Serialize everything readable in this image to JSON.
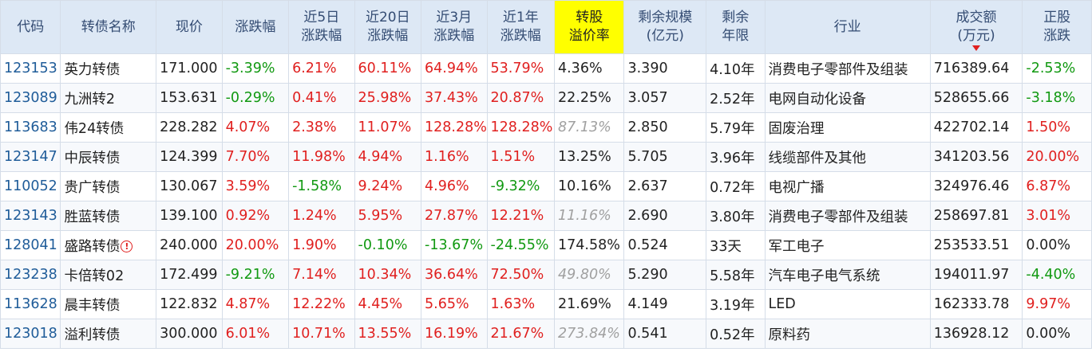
{
  "colors": {
    "up": "#e0201f",
    "down": "#119911",
    "highlight_header": "#ffff00",
    "code": "#1f5c99"
  },
  "headers": {
    "code": "代码",
    "name": "转债名称",
    "price": "现价",
    "change": "涨跌幅",
    "d5_l1": "近5日",
    "d5_l2": "涨跌幅",
    "d20_l1": "近20日",
    "d20_l2": "涨跌幅",
    "m3_l1": "近3月",
    "m3_l2": "涨跌幅",
    "y1_l1": "近1年",
    "y1_l2": "涨跌幅",
    "premium_l1": "转股",
    "premium_l2": "溢价率",
    "scale_l1": "剩余规模",
    "scale_l2": "(亿元)",
    "years_l1": "剩余",
    "years_l2": "年限",
    "industry": "行业",
    "volume_l1": "成交额",
    "volume_l2": "(万元)",
    "stock_l1": "正股",
    "stock_l2": "涨跌"
  },
  "rows": [
    {
      "code": "123153",
      "name": "英力转债",
      "price": "171.000",
      "change": "-3.39%",
      "d5": "6.21%",
      "d20": "60.11%",
      "m3": "64.94%",
      "y1": "53.79%",
      "premium": "4.36%",
      "scale": "3.390",
      "years": "4.10年",
      "industry": "消费电子零部件及组装",
      "volume": "716389.64",
      "stock": "-2.53%"
    },
    {
      "code": "123089",
      "name": "九洲转2",
      "price": "153.631",
      "change": "-0.29%",
      "d5": "0.41%",
      "d20": "25.98%",
      "m3": "37.43%",
      "y1": "20.87%",
      "premium": "22.25%",
      "scale": "3.057",
      "years": "2.52年",
      "industry": "电网自动化设备",
      "volume": "528655.66",
      "stock": "-3.18%"
    },
    {
      "code": "113683",
      "name": "伟24转债",
      "price": "228.282",
      "change": "4.07%",
      "d5": "2.38%",
      "d20": "11.07%",
      "m3": "128.28%",
      "y1": "128.28%",
      "premium": "87.13%",
      "scale": "2.850",
      "years": "5.79年",
      "industry": "固废治理",
      "volume": "422702.14",
      "stock": "1.50%"
    },
    {
      "code": "123147",
      "name": "中辰转债",
      "price": "124.399",
      "change": "7.70%",
      "d5": "11.98%",
      "d20": "4.94%",
      "m3": "1.16%",
      "y1": "1.51%",
      "premium": "13.25%",
      "scale": "5.705",
      "years": "3.96年",
      "industry": "线缆部件及其他",
      "volume": "341203.56",
      "stock": "20.00%"
    },
    {
      "code": "110052",
      "name": "贵广转债",
      "price": "130.067",
      "change": "3.59%",
      "d5": "-1.58%",
      "d20": "9.24%",
      "m3": "4.96%",
      "y1": "-9.32%",
      "premium": "10.16%",
      "scale": "2.637",
      "years": "0.72年",
      "industry": "电视广播",
      "volume": "324976.46",
      "stock": "6.87%"
    },
    {
      "code": "123143",
      "name": "胜蓝转债",
      "price": "139.100",
      "change": "0.92%",
      "d5": "1.24%",
      "d20": "5.95%",
      "m3": "27.87%",
      "y1": "12.21%",
      "premium": "11.16%",
      "scale": "2.690",
      "years": "3.80年",
      "industry": "消费电子零部件及组装",
      "volume": "258697.81",
      "stock": "3.01%"
    },
    {
      "code": "128041",
      "name": "盛路转债",
      "price": "240.000",
      "change": "20.00%",
      "d5": "1.90%",
      "d20": "-0.10%",
      "m3": "-13.67%",
      "y1": "-24.55%",
      "premium": "174.58%",
      "scale": "0.524",
      "years": "33天",
      "industry": "军工电子",
      "volume": "253533.51",
      "stock": "0.00%"
    },
    {
      "code": "123238",
      "name": "卡倍转02",
      "price": "172.499",
      "change": "-9.21%",
      "d5": "7.14%",
      "d20": "10.34%",
      "m3": "36.64%",
      "y1": "72.50%",
      "premium": "49.80%",
      "scale": "5.290",
      "years": "5.58年",
      "industry": "汽车电子电气系统",
      "volume": "194011.97",
      "stock": "-4.40%"
    },
    {
      "code": "113628",
      "name": "晨丰转债",
      "price": "122.832",
      "change": "4.87%",
      "d5": "12.22%",
      "d20": "4.45%",
      "m3": "5.65%",
      "y1": "1.63%",
      "premium": "21.69%",
      "scale": "4.149",
      "years": "3.19年",
      "industry": "LED",
      "volume": "162333.78",
      "stock": "9.97%"
    },
    {
      "code": "123018",
      "name": "溢利转债",
      "price": "300.000",
      "change": "6.01%",
      "d5": "10.71%",
      "d20": "13.55%",
      "m3": "16.19%",
      "y1": "21.67%",
      "premium": "273.84%",
      "scale": "0.541",
      "years": "0.52年",
      "industry": "原料药",
      "volume": "136928.12",
      "stock": "0.00%"
    }
  ],
  "premium_grey_rows": [
    2,
    5,
    7,
    9
  ],
  "warning_row": 6,
  "warning_icon": "exclamation-circle-icon",
  "sort_indicator_icon": "sort-desc-arrow-icon"
}
